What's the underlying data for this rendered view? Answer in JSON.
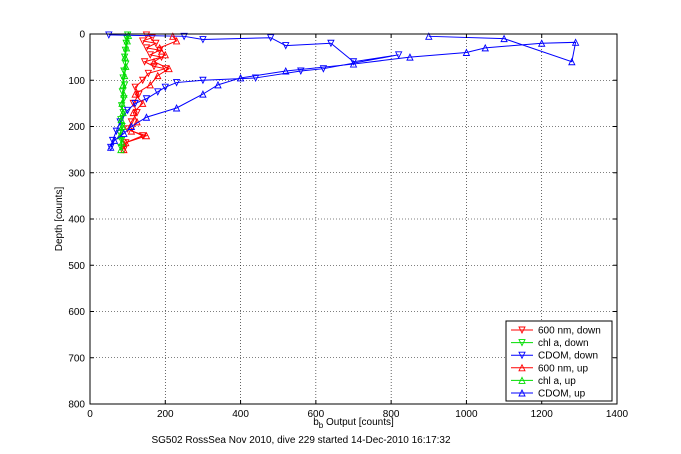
{
  "chart_data": {
    "type": "scatter",
    "title": "",
    "caption": "SG502 RossSea Nov 2010, dive 229 started 14-Dec-2010 16:17:32",
    "xlabel_main": "b",
    "xlabel_sub": "b",
    "xlabel_rest": " Output [counts]",
    "ylabel": "Depth [counts]",
    "xlim": [
      0,
      1400
    ],
    "ylim": [
      0,
      800
    ],
    "y_reversed": true,
    "grid": true,
    "legend_position": "bottom-right",
    "x_ticks": [
      "0",
      "200",
      "400",
      "600",
      "800",
      "1000",
      "1200",
      "1400"
    ],
    "y_ticks": [
      "0",
      "100",
      "200",
      "300",
      "400",
      "500",
      "600",
      "700",
      "800"
    ],
    "series": [
      {
        "name": "600 nm, down",
        "color": "#ff0000",
        "marker": "triangle-down",
        "line": true,
        "points": [
          [
            150,
            2
          ],
          [
            165,
            8
          ],
          [
            140,
            15
          ],
          [
            175,
            20
          ],
          [
            150,
            30
          ],
          [
            185,
            35
          ],
          [
            160,
            45
          ],
          [
            190,
            50
          ],
          [
            145,
            60
          ],
          [
            170,
            70
          ],
          [
            200,
            75
          ],
          [
            155,
            85
          ],
          [
            140,
            100
          ],
          [
            120,
            115
          ],
          [
            130,
            130
          ],
          [
            115,
            150
          ],
          [
            125,
            170
          ],
          [
            110,
            190
          ],
          [
            100,
            205
          ],
          [
            140,
            220
          ],
          [
            95,
            235
          ],
          [
            90,
            250
          ]
        ]
      },
      {
        "name": "chl a, down",
        "color": "#00dd00",
        "marker": "triangle-down",
        "line": true,
        "points": [
          [
            100,
            2
          ],
          [
            98,
            10
          ],
          [
            96,
            20
          ],
          [
            94,
            35
          ],
          [
            92,
            50
          ],
          [
            95,
            65
          ],
          [
            90,
            80
          ],
          [
            88,
            95
          ],
          [
            92,
            110
          ],
          [
            86,
            125
          ],
          [
            90,
            140
          ],
          [
            84,
            155
          ],
          [
            88,
            170
          ],
          [
            82,
            185
          ],
          [
            85,
            200
          ],
          [
            80,
            215
          ],
          [
            84,
            230
          ],
          [
            82,
            245
          ]
        ]
      },
      {
        "name": "CDOM, down",
        "color": "#0000ff",
        "marker": "triangle-down",
        "line": true,
        "points": [
          [
            50,
            2
          ],
          [
            250,
            5
          ],
          [
            300,
            12
          ],
          [
            480,
            8
          ],
          [
            520,
            25
          ],
          [
            640,
            20
          ],
          [
            700,
            60
          ],
          [
            820,
            45
          ],
          [
            620,
            75
          ],
          [
            560,
            80
          ],
          [
            440,
            95
          ],
          [
            300,
            100
          ],
          [
            230,
            105
          ],
          [
            200,
            115
          ],
          [
            180,
            125
          ],
          [
            150,
            140
          ],
          [
            120,
            150
          ],
          [
            100,
            165
          ],
          [
            80,
            190
          ],
          [
            70,
            210
          ],
          [
            60,
            230
          ],
          [
            55,
            245
          ]
        ]
      },
      {
        "name": "600 nm, up",
        "color": "#ff0000",
        "marker": "triangle-up",
        "line": true,
        "points": [
          [
            90,
            250
          ],
          [
            95,
            235
          ],
          [
            150,
            220
          ],
          [
            110,
            210
          ],
          [
            125,
            190
          ],
          [
            115,
            170
          ],
          [
            140,
            150
          ],
          [
            120,
            130
          ],
          [
            160,
            110
          ],
          [
            180,
            90
          ],
          [
            210,
            75
          ],
          [
            170,
            60
          ],
          [
            200,
            45
          ],
          [
            185,
            30
          ],
          [
            230,
            15
          ],
          [
            220,
            5
          ]
        ]
      },
      {
        "name": "chl a, up",
        "color": "#00dd00",
        "marker": "triangle-up",
        "line": true,
        "points": [
          [
            82,
            250
          ],
          [
            85,
            235
          ],
          [
            80,
            220
          ],
          [
            86,
            200
          ],
          [
            83,
            185
          ],
          [
            88,
            170
          ],
          [
            85,
            150
          ],
          [
            90,
            130
          ],
          [
            88,
            110
          ],
          [
            92,
            90
          ],
          [
            95,
            70
          ],
          [
            93,
            50
          ],
          [
            97,
            30
          ],
          [
            99,
            15
          ],
          [
            102,
            3
          ]
        ]
      },
      {
        "name": "CDOM, up",
        "color": "#0000ff",
        "marker": "triangle-up",
        "line": true,
        "points": [
          [
            55,
            245
          ],
          [
            65,
            230
          ],
          [
            90,
            215
          ],
          [
            110,
            200
          ],
          [
            150,
            180
          ],
          [
            230,
            160
          ],
          [
            300,
            130
          ],
          [
            340,
            110
          ],
          [
            400,
            95
          ],
          [
            520,
            80
          ],
          [
            700,
            65
          ],
          [
            850,
            50
          ],
          [
            1000,
            40
          ],
          [
            1050,
            30
          ],
          [
            1200,
            20
          ],
          [
            1290,
            18
          ],
          [
            1280,
            60
          ],
          [
            1100,
            10
          ],
          [
            900,
            5
          ]
        ]
      }
    ]
  }
}
